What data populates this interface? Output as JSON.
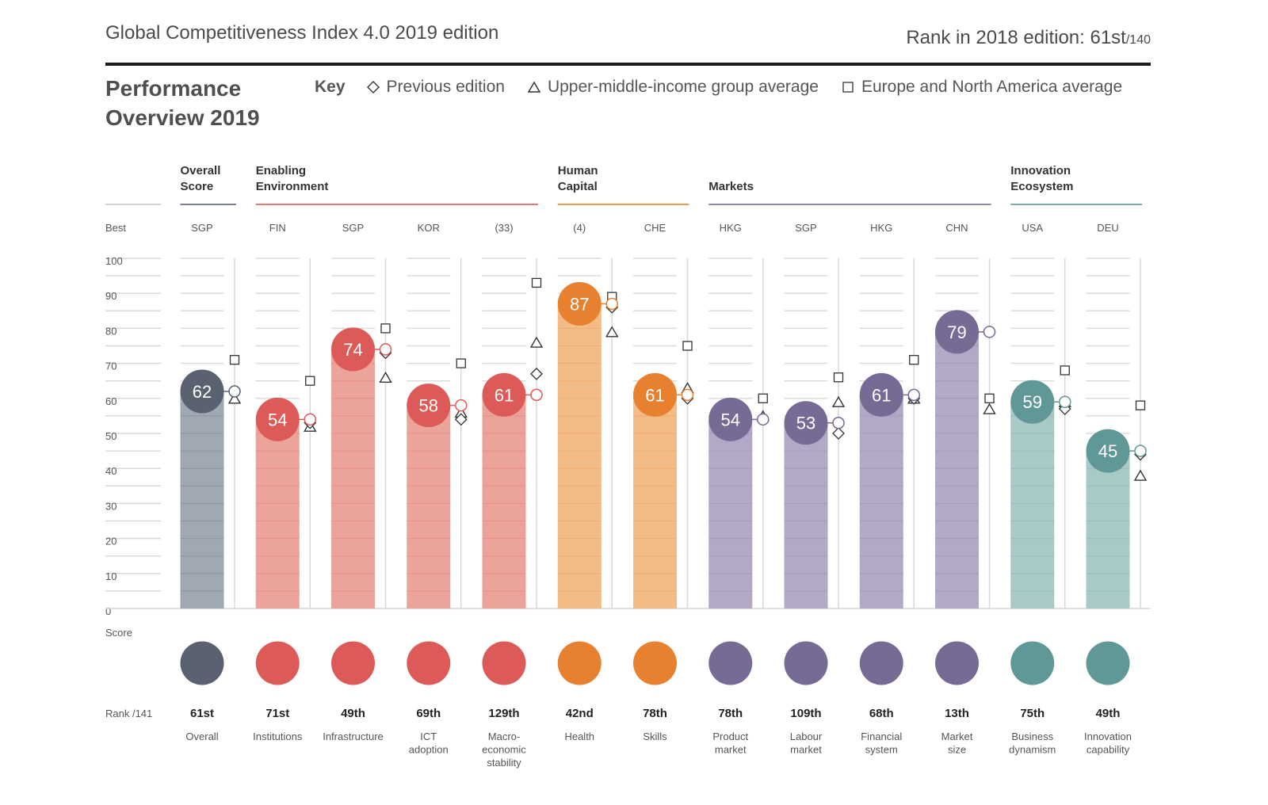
{
  "header": {
    "title": "Global Competitiveness Index 4.0 2019 edition",
    "rank_2018_label": "Rank in 2018 edition: 61st",
    "rank_2018_suffix": "/140"
  },
  "section_title_line1": "Performance",
  "section_title_line2": "Overview 2019",
  "key": {
    "label": "Key",
    "items": [
      {
        "icon": "diamond-icon",
        "label": "Previous edition"
      },
      {
        "icon": "triangle-icon",
        "label": "Upper-middle-income group average"
      },
      {
        "icon": "square-icon",
        "label": "Europe and North America average"
      }
    ]
  },
  "row_labels": {
    "best": "Best",
    "score": "Score",
    "rank": "Rank /141"
  },
  "chart_data": {
    "type": "bar",
    "title": "Performance Overview 2019",
    "ylabel": "Score",
    "ylim": [
      0,
      100
    ],
    "yticks": [
      0,
      10,
      20,
      30,
      40,
      50,
      60,
      70,
      80,
      90,
      100
    ],
    "grid": true,
    "groups": [
      {
        "name": "Overall\nScore",
        "line1": "Overall",
        "line2": "Score",
        "color": "#5a6272",
        "light": "#a0a8b3",
        "span": [
          0,
          0
        ]
      },
      {
        "name": "Enabling Environment",
        "line1": "Enabling",
        "line2": "Environment",
        "color": "#dc5a57",
        "light": "#eba39a",
        "span": [
          1,
          4
        ]
      },
      {
        "name": "Human Capital",
        "line1": "Human",
        "line2": "Capital",
        "color": "#e8812f",
        "light": "#f3bb85",
        "span": [
          5,
          6
        ]
      },
      {
        "name": "Markets",
        "line1": "",
        "line2": "Markets",
        "color": "#776a94",
        "light": "#b3a9c6",
        "span": [
          7,
          10
        ]
      },
      {
        "name": "Innovation Ecosystem",
        "line1": "Innovation",
        "line2": "Ecosystem",
        "color": "#5f9896",
        "light": "#a8cac7",
        "span": [
          11,
          12
        ]
      }
    ],
    "categories": [
      "Overall",
      "Institutions",
      "Infrastructure",
      "ICT adoption",
      "Macro-economic stability",
      "Health",
      "Skills",
      "Product market",
      "Labour market",
      "Financial system",
      "Market size",
      "Business dynamism",
      "Innovation capability"
    ],
    "category_lines": [
      [
        "Overall"
      ],
      [
        "Institutions"
      ],
      [
        "Infrastructure"
      ],
      [
        "ICT",
        "adoption"
      ],
      [
        "Macro-",
        "economic",
        "stability"
      ],
      [
        "Health"
      ],
      [
        "Skills"
      ],
      [
        "Product",
        "market"
      ],
      [
        "Labour",
        "market"
      ],
      [
        "Financial",
        "system"
      ],
      [
        "Market",
        "size"
      ],
      [
        "Business",
        "dynamism"
      ],
      [
        "Innovation",
        "capability"
      ]
    ],
    "group_index": [
      0,
      1,
      1,
      1,
      1,
      2,
      2,
      3,
      3,
      3,
      3,
      4,
      4
    ],
    "best": [
      "SGP",
      "FIN",
      "SGP",
      "KOR",
      "(33)",
      "(4)",
      "CHE",
      "HKG",
      "SGP",
      "HKG",
      "CHN",
      "USA",
      "DEU"
    ],
    "series": [
      {
        "name": "Score 2019",
        "values": [
          62,
          54,
          74,
          58,
          61,
          87,
          61,
          54,
          53,
          61,
          79,
          59,
          45
        ]
      },
      {
        "name": "Previous edition",
        "marker": "diamond",
        "values": [
          62,
          53,
          73,
          54,
          67,
          86,
          60,
          54,
          50,
          60,
          79,
          57,
          44
        ]
      },
      {
        "name": "Upper-middle-income group average",
        "marker": "triangle",
        "values": [
          60,
          52,
          66,
          56,
          76,
          79,
          63,
          55,
          59,
          60,
          57,
          59,
          38
        ]
      },
      {
        "name": "Europe and North America average",
        "marker": "square",
        "values": [
          71,
          65,
          80,
          70,
          93,
          89,
          75,
          60,
          66,
          71,
          60,
          68,
          58
        ]
      }
    ],
    "ranks": [
      "61st",
      "71st",
      "49th",
      "69th",
      "129th",
      "42nd",
      "78th",
      "78th",
      "109th",
      "68th",
      "13th",
      "75th",
      "49th"
    ]
  }
}
